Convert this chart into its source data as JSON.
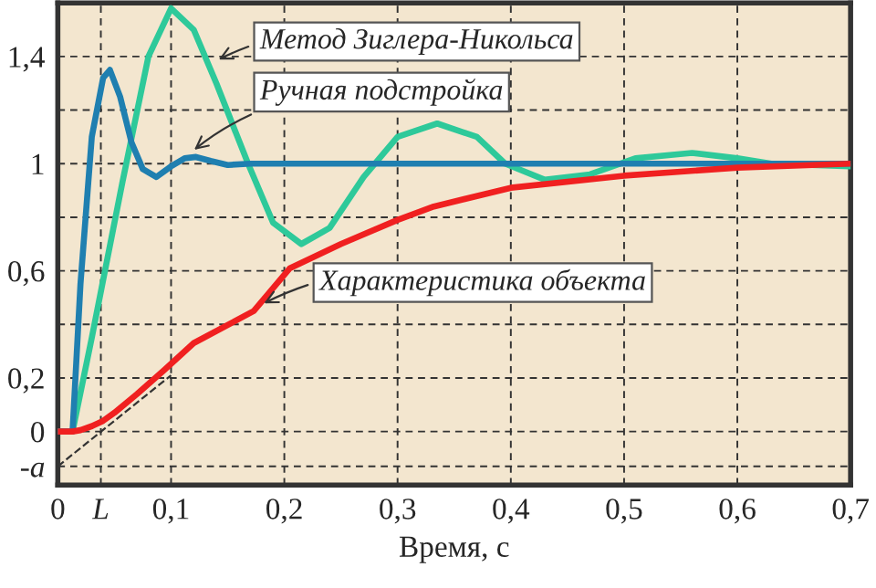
{
  "chart_data": {
    "type": "line",
    "xlabel": "Время, с",
    "xlim": [
      0,
      0.7
    ],
    "ylim": [
      -0.2,
      1.6
    ],
    "xticks": [
      0,
      {
        "value": 0.038,
        "label": "L"
      },
      {
        "value": 0.1,
        "label": "0,1"
      },
      {
        "value": 0.2,
        "label": "0,2"
      },
      {
        "value": 0.3,
        "label": "0,3"
      },
      {
        "value": 0.4,
        "label": "0,4"
      },
      {
        "value": 0.5,
        "label": "0,5"
      },
      {
        "value": 0.6,
        "label": "0,6"
      },
      {
        "value": 0.7,
        "label": "0,7"
      }
    ],
    "yticks": [
      {
        "value": -0.13,
        "label": "-a"
      },
      0,
      {
        "value": 0.2,
        "label": "0,2"
      },
      {
        "value": 0.4,
        "label": null
      },
      {
        "value": 0.6,
        "label": "0,6"
      },
      {
        "value": 0.8,
        "label": null
      },
      1,
      {
        "value": 1.2,
        "label": null
      },
      {
        "value": 1.4,
        "label": "1,4"
      }
    ],
    "grid": true,
    "line_style": "solid",
    "series": [
      {
        "color": "#2ec99a",
        "x": [
          0,
          0.013,
          0.03,
          0.057,
          0.08,
          0.1,
          0.12,
          0.14,
          0.168,
          0.19,
          0.215,
          0.24,
          0.27,
          0.3,
          0.335,
          0.37,
          0.395,
          0.43,
          0.47,
          0.51,
          0.56,
          0.6,
          0.63,
          0.7
        ],
        "values": [
          0,
          0,
          0.35,
          0.93,
          1.4,
          1.58,
          1.5,
          1.3,
          1.0,
          0.78,
          0.7,
          0.76,
          0.95,
          1.1,
          1.15,
          1.1,
          1.0,
          0.94,
          0.96,
          1.02,
          1.04,
          1.02,
          1.0,
          0.99
        ]
      },
      {
        "color": "#1f7fb0",
        "x": [
          0,
          0.013,
          0.02,
          0.03,
          0.04,
          0.046,
          0.055,
          0.065,
          0.075,
          0.087,
          0.1,
          0.112,
          0.122,
          0.135,
          0.15,
          0.17,
          0.7
        ],
        "values": [
          0,
          0,
          0.55,
          1.1,
          1.32,
          1.35,
          1.25,
          1.08,
          0.98,
          0.95,
          0.99,
          1.02,
          1.025,
          1.01,
          0.995,
          1.0,
          1.0
        ]
      },
      {
        "color": "#f02020",
        "x": [
          0,
          0.013,
          0.02,
          0.03,
          0.04,
          0.05,
          0.07,
          0.094,
          0.12,
          0.173,
          0.205,
          0.25,
          0.3,
          0.332,
          0.4,
          0.5,
          0.6,
          0.7
        ],
        "values": [
          0,
          0,
          0.005,
          0.02,
          0.04,
          0.07,
          0.14,
          0.23,
          0.33,
          0.45,
          0.61,
          0.7,
          0.79,
          0.84,
          0.91,
          0.955,
          0.985,
          1.0
        ]
      },
      {
        "color": "#333333",
        "line_style": "dashed",
        "x": [
          0,
          0.1
        ],
        "values": [
          -0.13,
          0.21
        ]
      }
    ],
    "annotations": [
      {
        "text": "Метод Зиглера-Никольса",
        "x": 0.138,
        "y": 1.38
      },
      {
        "text": "Ручная подстройка",
        "x": 0.117,
        "y": 1.04
      },
      {
        "text": "Характеристика объекта",
        "x": 0.178,
        "y": 0.47
      }
    ]
  }
}
